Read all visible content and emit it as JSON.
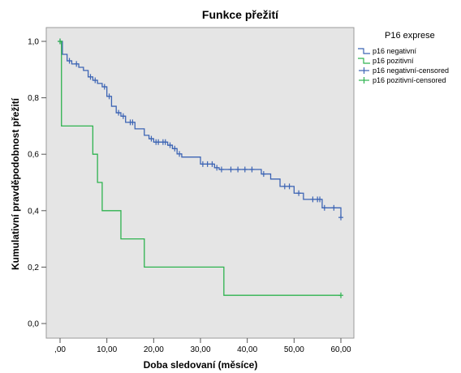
{
  "chart_data": {
    "type": "line",
    "title": "Funkce přežití",
    "xlabel": "Doba sledovaní (měsíce)",
    "ylabel": "Kumulativní pravděpodobnost přežití",
    "xlim": [
      0,
      60
    ],
    "ylim": [
      0,
      1.0
    ],
    "x_ticks": [
      ",00",
      "10,00",
      "20,00",
      "30,00",
      "40,00",
      "50,00",
      "60,00"
    ],
    "x_tick_values": [
      0,
      10,
      20,
      30,
      40,
      50,
      60
    ],
    "y_ticks": [
      "0,0",
      "0,2",
      "0,4",
      "0,6",
      "0,8",
      "1,0"
    ],
    "y_tick_values": [
      0,
      0.2,
      0.4,
      0.6,
      0.8,
      1.0
    ],
    "background": "#e5e5e5",
    "legend_title": "P16 exprese",
    "legend_position": "right",
    "series": [
      {
        "name": "p16 negativní",
        "color": "#3c64b4",
        "steps": [
          [
            0,
            1.0
          ],
          [
            0.5,
            0.954
          ],
          [
            1.5,
            0.931
          ],
          [
            2.5,
            0.92
          ],
          [
            4,
            0.908
          ],
          [
            5,
            0.897
          ],
          [
            6,
            0.874
          ],
          [
            7,
            0.862
          ],
          [
            8,
            0.851
          ],
          [
            9,
            0.839
          ],
          [
            10,
            0.805
          ],
          [
            11,
            0.77
          ],
          [
            12,
            0.747
          ],
          [
            13,
            0.735
          ],
          [
            14,
            0.713
          ],
          [
            16,
            0.69
          ],
          [
            18,
            0.667
          ],
          [
            19,
            0.655
          ],
          [
            20,
            0.643
          ],
          [
            23,
            0.632
          ],
          [
            24,
            0.62
          ],
          [
            25,
            0.601
          ],
          [
            26,
            0.59
          ],
          [
            30,
            0.565
          ],
          [
            33,
            0.552
          ],
          [
            34,
            0.546
          ],
          [
            43,
            0.53
          ],
          [
            45,
            0.512
          ],
          [
            47,
            0.486
          ],
          [
            50,
            0.462
          ],
          [
            52,
            0.44
          ],
          [
            56,
            0.41
          ],
          [
            60,
            0.376
          ]
        ],
        "censored_x": [
          0,
          2,
          3.5,
          6.5,
          7.5,
          9.5,
          10.5,
          12.5,
          13.5,
          15,
          15.5,
          19.5,
          20.5,
          21,
          22,
          22.5,
          23.5,
          24.5,
          25.5,
          30.5,
          31.5,
          32.5,
          33.5,
          34.5,
          36.5,
          38,
          39.5,
          41,
          43.5,
          48,
          49,
          51,
          54,
          55,
          55.5,
          56.5,
          58.5,
          60
        ]
      },
      {
        "name": "p16 pozitivní",
        "color": "#2eb34f",
        "steps": [
          [
            0,
            1.0
          ],
          [
            0.3,
            0.7
          ],
          [
            7,
            0.6
          ],
          [
            8,
            0.5
          ],
          [
            9,
            0.4
          ],
          [
            13,
            0.3
          ],
          [
            18,
            0.2
          ],
          [
            35,
            0.1
          ],
          [
            60,
            0.1
          ]
        ],
        "censored_x": [
          0,
          60
        ]
      }
    ],
    "legend_entries": [
      {
        "label": "p16 negativní",
        "color": "#3c64b4",
        "kind": "line"
      },
      {
        "label": "p16 pozitivní",
        "color": "#2eb34f",
        "kind": "line"
      },
      {
        "label": "p16 negativní-censored",
        "color": "#3c64b4",
        "kind": "plus"
      },
      {
        "label": "p16 pozitivní-censored",
        "color": "#2eb34f",
        "kind": "plus"
      }
    ]
  }
}
